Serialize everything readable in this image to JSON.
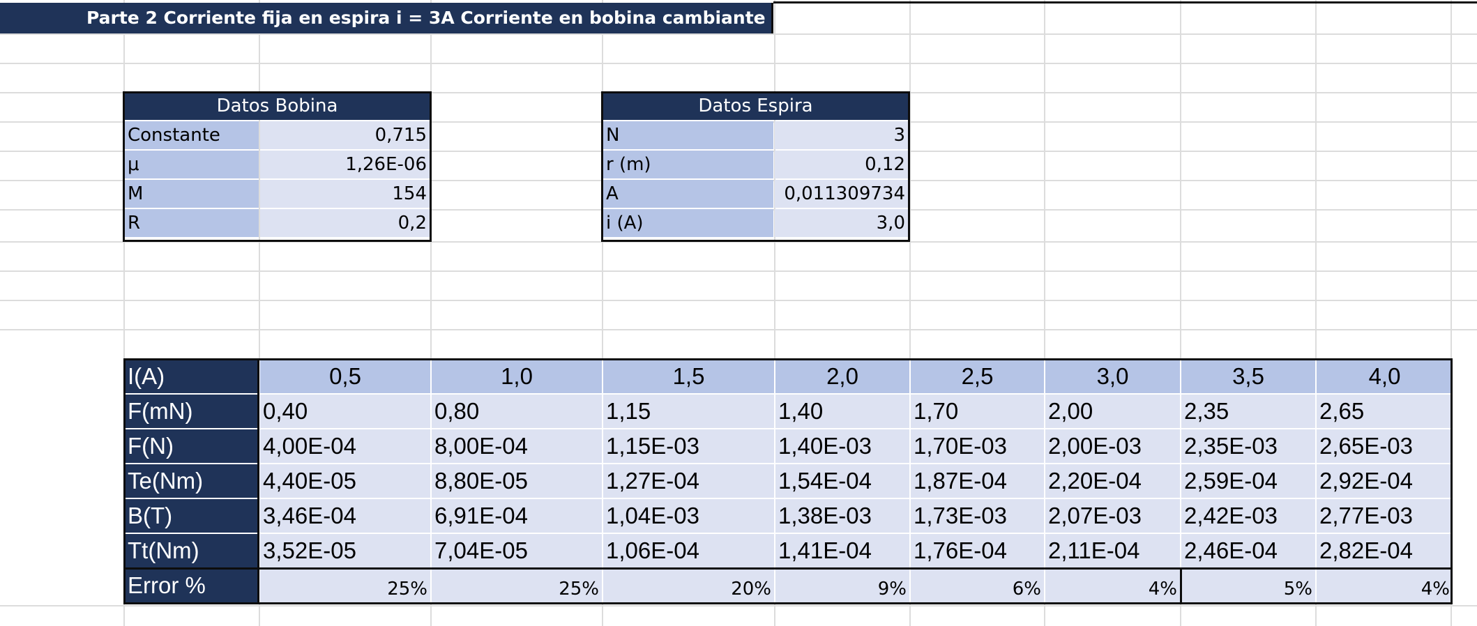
{
  "sheet": {
    "title": "Parte 2 Corriente fija en espira i = 3A Corriente en bobina cambiante"
  },
  "datos_bobina": {
    "header": "Datos Bobina",
    "rows": [
      {
        "label": "Constante",
        "value": "0,715"
      },
      {
        "label": "μ",
        "value": "1,26E-06"
      },
      {
        "label": "M",
        "value": "154"
      },
      {
        "label": "R",
        "value": "0,2"
      }
    ]
  },
  "datos_espira": {
    "header": "Datos Espira",
    "rows": [
      {
        "label": "N",
        "value": "3"
      },
      {
        "label": "r (m)",
        "value": "0,12"
      },
      {
        "label": "A",
        "value": "0,011309734"
      },
      {
        "label": "i (A)",
        "value": "3,0"
      }
    ]
  },
  "results": {
    "rows": [
      {
        "label": "I(A)",
        "cells": [
          "0,5",
          "1,0",
          "1,5",
          "2,0",
          "2,5",
          "3,0",
          "3,5",
          "4,0"
        ]
      },
      {
        "label": "F(mN)",
        "cells": [
          "0,40",
          "0,80",
          "1,15",
          "1,40",
          "1,70",
          "2,00",
          "2,35",
          "2,65"
        ]
      },
      {
        "label": "F(N)",
        "cells": [
          "4,00E-04",
          "8,00E-04",
          "1,15E-03",
          "1,40E-03",
          "1,70E-03",
          "2,00E-03",
          "2,35E-03",
          "2,65E-03"
        ]
      },
      {
        "label": "Te(Nm)",
        "cells": [
          "4,40E-05",
          "8,80E-05",
          "1,27E-04",
          "1,54E-04",
          "1,87E-04",
          "2,20E-04",
          "2,59E-04",
          "2,92E-04"
        ]
      },
      {
        "label": "B(T)",
        "cells": [
          "3,46E-04",
          "6,91E-04",
          "1,04E-03",
          "1,38E-03",
          "1,73E-03",
          "2,07E-03",
          "2,42E-03",
          "2,77E-03"
        ]
      },
      {
        "label": "Tt(Nm)",
        "cells": [
          "3,52E-05",
          "7,04E-05",
          "1,06E-04",
          "1,41E-04",
          "1,76E-04",
          "2,11E-04",
          "2,46E-04",
          "2,82E-04"
        ]
      },
      {
        "label": "Error %",
        "cells": [
          "25%",
          "25%",
          "20%",
          "9%",
          "6%",
          "4%",
          "5%",
          "4%"
        ]
      }
    ]
  },
  "colors": {
    "header_navy": "#1f3358",
    "label_blue": "#b5c4e6",
    "value_lavender": "#dde2f2",
    "gridline": "#dcdcdc"
  }
}
